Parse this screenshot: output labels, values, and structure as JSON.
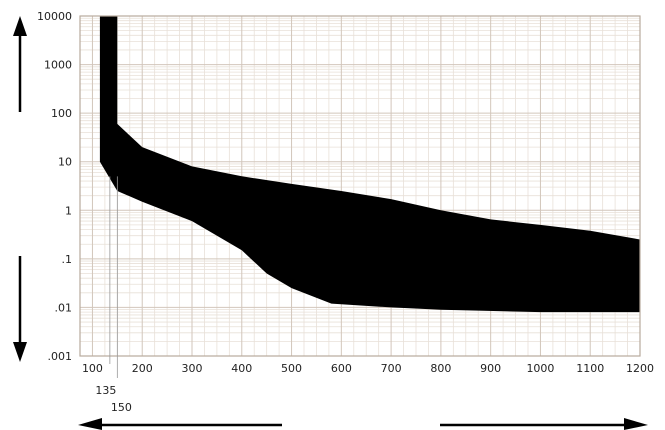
{
  "chart_data": {
    "type": "area",
    "title": "",
    "xlabel": "",
    "ylabel": "",
    "x_scale": "linear",
    "y_scale": "log",
    "xlim": [
      75,
      1200
    ],
    "ylim": [
      0.001,
      10000
    ],
    "x_ticks": [
      "100",
      "200",
      "300",
      "400",
      "500",
      "600",
      "700",
      "800",
      "900",
      "1000",
      "1100",
      "1200"
    ],
    "y_ticks": [
      "10000",
      "1000",
      "100",
      "10",
      "1",
      ".1",
      ".01",
      ".001"
    ],
    "x_tick_values": [
      100,
      200,
      300,
      400,
      500,
      600,
      700,
      800,
      900,
      1000,
      1100,
      1200
    ],
    "y_tick_values": [
      10000,
      1000,
      100,
      10,
      1,
      0.1,
      0.01,
      0.001
    ],
    "annotations": [
      {
        "label": "135",
        "x": 135
      },
      {
        "label": "150",
        "x": 150
      }
    ],
    "grid": true,
    "band": {
      "upper": [
        {
          "x": 115,
          "y": 10000
        },
        {
          "x": 150,
          "y": 10000
        },
        {
          "x": 150,
          "y": 60
        },
        {
          "x": 200,
          "y": 20
        },
        {
          "x": 300,
          "y": 8
        },
        {
          "x": 400,
          "y": 5
        },
        {
          "x": 500,
          "y": 3.5
        },
        {
          "x": 600,
          "y": 2.5
        },
        {
          "x": 700,
          "y": 1.7
        },
        {
          "x": 800,
          "y": 1.0
        },
        {
          "x": 900,
          "y": 0.65
        },
        {
          "x": 1000,
          "y": 0.5
        },
        {
          "x": 1100,
          "y": 0.38
        },
        {
          "x": 1200,
          "y": 0.25
        }
      ],
      "lower": [
        {
          "x": 115,
          "y": 10
        },
        {
          "x": 150,
          "y": 2.5
        },
        {
          "x": 200,
          "y": 1.5
        },
        {
          "x": 300,
          "y": 0.6
        },
        {
          "x": 400,
          "y": 0.15
        },
        {
          "x": 450,
          "y": 0.05
        },
        {
          "x": 500,
          "y": 0.025
        },
        {
          "x": 580,
          "y": 0.012
        },
        {
          "x": 700,
          "y": 0.01
        },
        {
          "x": 800,
          "y": 0.009
        },
        {
          "x": 1000,
          "y": 0.008
        },
        {
          "x": 1200,
          "y": 0.008
        }
      ]
    }
  }
}
